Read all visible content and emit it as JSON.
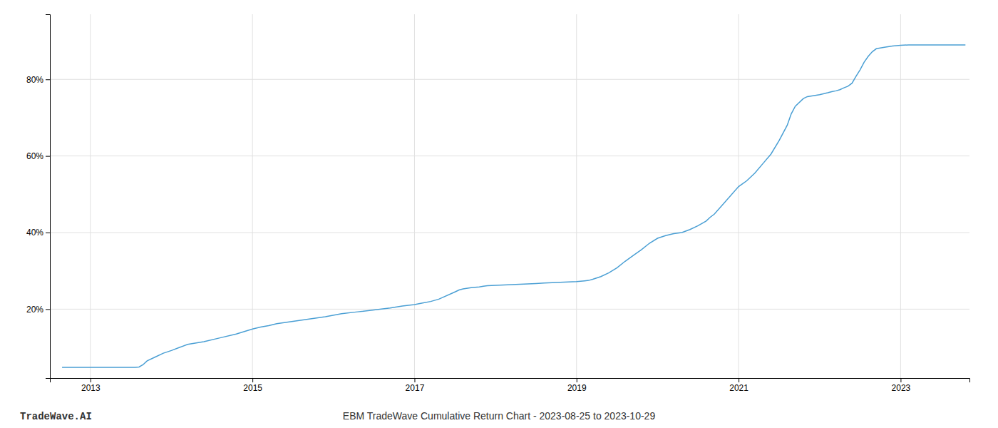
{
  "chart_data": {
    "type": "line",
    "title": "EBM TradeWave Cumulative Return Chart - 2023-08-25 to 2023-10-29",
    "annotations": [
      "TradeWave.AI"
    ],
    "color": "#4a9fd4",
    "grid": true,
    "xlim": [
      2012.5,
      2023.85
    ],
    "ylim": [
      0.02,
      0.97
    ],
    "xticks": [
      2013,
      2015,
      2017,
      2019,
      2021,
      2023
    ],
    "yticks": [
      {
        "value": 0.2,
        "label": "20%"
      },
      {
        "value": 0.4,
        "label": "40%"
      },
      {
        "value": 0.6,
        "label": "60%"
      },
      {
        "value": 0.8,
        "label": "80%"
      }
    ],
    "x": [
      2012.65,
      2012.75,
      2013.0,
      2013.1,
      2013.5,
      2013.55,
      2013.6,
      2013.65,
      2013.7,
      2013.8,
      2013.9,
      2014.0,
      2014.1,
      2014.2,
      2014.4,
      2014.6,
      2014.8,
      2015.0,
      2015.1,
      2015.2,
      2015.3,
      2015.5,
      2015.7,
      2015.9,
      2016.1,
      2016.3,
      2016.5,
      2016.7,
      2016.85,
      2017.0,
      2017.1,
      2017.2,
      2017.3,
      2017.5,
      2017.55,
      2017.6,
      2017.7,
      2017.8,
      2017.85,
      2017.9,
      2018.0,
      2018.1,
      2018.2,
      2018.3,
      2018.5,
      2018.6,
      2018.7,
      2018.8,
      2018.9,
      2019.0,
      2019.1,
      2019.15,
      2019.2,
      2019.3,
      2019.4,
      2019.5,
      2019.6,
      2019.7,
      2019.8,
      2019.9,
      2020.0,
      2020.1,
      2020.2,
      2020.3,
      2020.4,
      2020.5,
      2020.6,
      2020.65,
      2020.7,
      2021.0,
      2021.1,
      2021.2,
      2021.3,
      2021.4,
      2021.5,
      2021.6,
      2021.65,
      2021.7,
      2021.8,
      2021.85,
      2022.0,
      2022.1,
      2022.15,
      2022.2,
      2022.25,
      2022.3,
      2022.35,
      2022.4,
      2022.45,
      2022.5,
      2022.55,
      2022.6,
      2022.65,
      2022.7,
      2022.8,
      2022.9,
      2023.0,
      2023.1,
      2023.2,
      2023.3,
      2023.4,
      2023.5,
      2023.6,
      2023.7,
      2023.8
    ],
    "values": [
      0.048,
      0.048,
      0.048,
      0.048,
      0.048,
      0.048,
      0.049,
      0.055,
      0.065,
      0.075,
      0.085,
      0.092,
      0.1,
      0.108,
      0.115,
      0.125,
      0.135,
      0.148,
      0.153,
      0.157,
      0.162,
      0.168,
      0.174,
      0.18,
      0.188,
      0.193,
      0.198,
      0.203,
      0.208,
      0.212,
      0.216,
      0.22,
      0.226,
      0.245,
      0.25,
      0.253,
      0.256,
      0.258,
      0.26,
      0.261,
      0.262,
      0.263,
      0.264,
      0.265,
      0.267,
      0.268,
      0.269,
      0.27,
      0.271,
      0.272,
      0.274,
      0.275,
      0.278,
      0.285,
      0.295,
      0.308,
      0.325,
      0.34,
      0.355,
      0.372,
      0.385,
      0.392,
      0.397,
      0.4,
      0.408,
      0.418,
      0.43,
      0.44,
      0.448,
      0.52,
      0.535,
      0.555,
      0.58,
      0.605,
      0.64,
      0.68,
      0.71,
      0.73,
      0.75,
      0.755,
      0.76,
      0.765,
      0.768,
      0.77,
      0.773,
      0.778,
      0.782,
      0.79,
      0.808,
      0.825,
      0.845,
      0.86,
      0.872,
      0.88,
      0.884,
      0.887,
      0.889,
      0.89,
      0.89,
      0.89,
      0.89,
      0.89,
      0.89,
      0.89,
      0.89
    ]
  }
}
